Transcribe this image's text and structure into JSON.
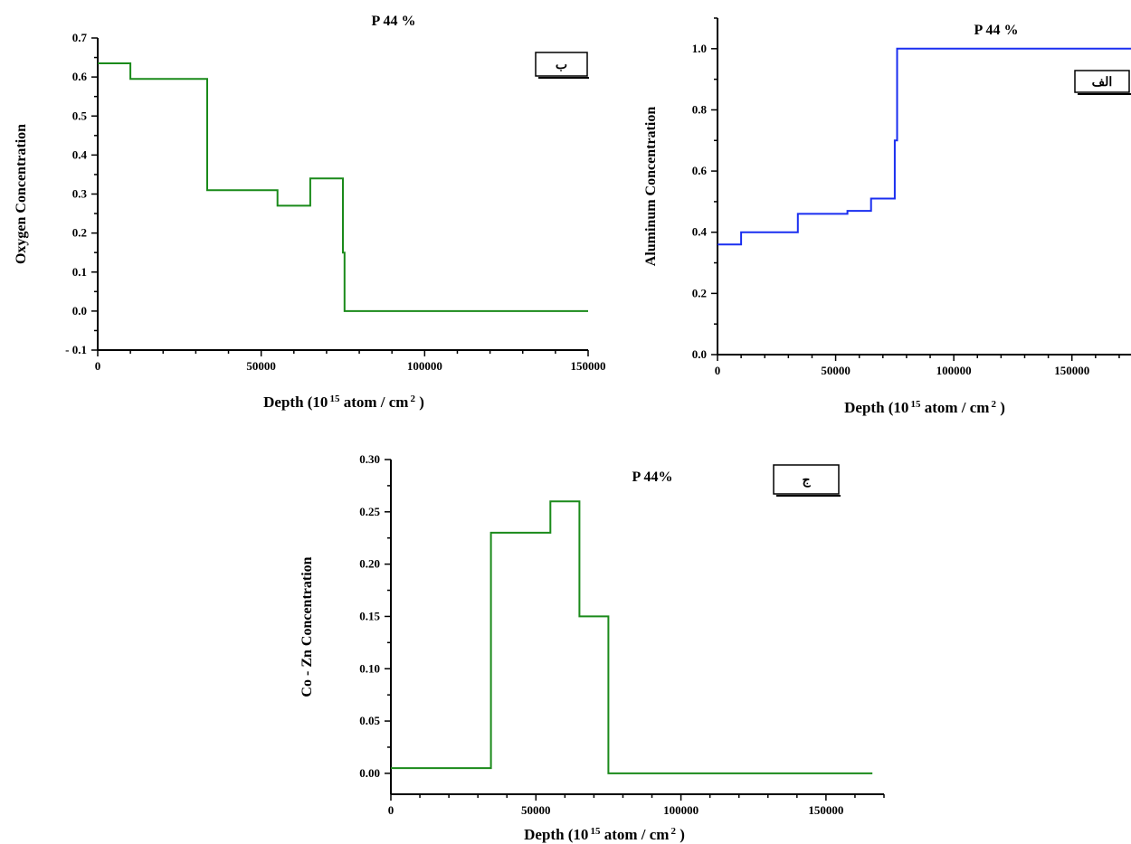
{
  "charts": [
    {
      "id": "oxygen",
      "title": "P 44 %",
      "badge": "ب",
      "ylabel": "Oxygen Concentration",
      "xlabel_main": "Depth (10",
      "xlabel_sup1": "15",
      "xlabel_mid": " atom / cm",
      "xlabel_sup2": "2",
      "xlabel_end": " )",
      "color": "#1a8a1a",
      "xticks": [
        {
          "v": 0,
          "label": "0"
        },
        {
          "v": 50000,
          "label": "50000"
        },
        {
          "v": 100000,
          "label": "100000"
        },
        {
          "v": 150000,
          "label": "150000"
        }
      ],
      "yticks": [
        {
          "v": -0.1,
          "label": "- 0.1"
        },
        {
          "v": 0.0,
          "label": "0.0"
        },
        {
          "v": 0.1,
          "label": "0.1"
        },
        {
          "v": 0.2,
          "label": "0.2"
        },
        {
          "v": 0.3,
          "label": "0.3"
        },
        {
          "v": 0.4,
          "label": "0.4"
        },
        {
          "v": 0.5,
          "label": "0.5"
        },
        {
          "v": 0.6,
          "label": "0.6"
        },
        {
          "v": 0.7,
          "label": "0.7"
        }
      ]
    },
    {
      "id": "aluminum",
      "title": "P 44 %",
      "badge": "الف",
      "ylabel": "Aluminum Concentration",
      "xlabel_main": "Depth (10",
      "xlabel_sup1": "15",
      "xlabel_mid": " atom / cm",
      "xlabel_sup2": "2",
      "xlabel_end": " )",
      "color": "#1a2ef0",
      "xticks": [
        {
          "v": 0,
          "label": "0"
        },
        {
          "v": 50000,
          "label": "50000"
        },
        {
          "v": 100000,
          "label": "100000"
        },
        {
          "v": 150000,
          "label": "150000"
        }
      ],
      "yticks": [
        {
          "v": 0.0,
          "label": "0.0"
        },
        {
          "v": 0.2,
          "label": "0.2"
        },
        {
          "v": 0.4,
          "label": "0.4"
        },
        {
          "v": 0.6,
          "label": "0.6"
        },
        {
          "v": 0.8,
          "label": "0.8"
        },
        {
          "v": 1.0,
          "label": "1.0"
        }
      ]
    },
    {
      "id": "cozn",
      "title": "P 44%",
      "badge": "ج",
      "ylabel": "Co - Zn Concentration",
      "xlabel_main": "Depth (10",
      "xlabel_sup1": "15",
      "xlabel_mid": " atom / cm",
      "xlabel_sup2": "2",
      "xlabel_end": " )",
      "color": "#1a8a1a",
      "xticks": [
        {
          "v": 0,
          "label": "0"
        },
        {
          "v": 50000,
          "label": "50000"
        },
        {
          "v": 100000,
          "label": "100000"
        },
        {
          "v": 150000,
          "label": "150000"
        }
      ],
      "yticks": [
        {
          "v": 0.0,
          "label": "0.00"
        },
        {
          "v": 0.05,
          "label": "0.05"
        },
        {
          "v": 0.1,
          "label": "0.10"
        },
        {
          "v": 0.15,
          "label": "0.15"
        },
        {
          "v": 0.2,
          "label": "0.20"
        },
        {
          "v": 0.25,
          "label": "0.25"
        },
        {
          "v": 0.3,
          "label": "0.30"
        }
      ]
    }
  ],
  "chart_data": [
    {
      "type": "line",
      "title": "P 44 %",
      "xlabel": "Depth (10 15 atom / cm 2 )",
      "ylabel": "Oxygen Concentration",
      "xlim": [
        0,
        150000
      ],
      "ylim": [
        -0.1,
        0.7
      ],
      "step": true,
      "series": [
        {
          "x": [
            0,
            10000,
            10000,
            33500,
            33500,
            55000,
            55000,
            65000,
            65000,
            75000,
            75000,
            75500,
            75500,
            150000
          ],
          "y": [
            0.635,
            0.635,
            0.595,
            0.595,
            0.31,
            0.31,
            0.27,
            0.27,
            0.34,
            0.34,
            0.15,
            0.15,
            0.0,
            0.0
          ]
        }
      ]
    },
    {
      "type": "line",
      "title": "P 44 %",
      "xlabel": "Depth (10 15 atom / cm 2 )",
      "ylabel": "Aluminum Concentration",
      "xlim": [
        0,
        175000
      ],
      "ylim": [
        0.0,
        1.1
      ],
      "step": true,
      "series": [
        {
          "x": [
            0,
            10000,
            10000,
            34000,
            34000,
            55000,
            55000,
            65000,
            65000,
            75000,
            75000,
            76000,
            76000,
            175000
          ],
          "y": [
            0.36,
            0.36,
            0.4,
            0.4,
            0.46,
            0.46,
            0.47,
            0.47,
            0.51,
            0.51,
            0.7,
            0.7,
            1.0,
            1.0
          ]
        }
      ]
    },
    {
      "type": "line",
      "title": "P 44%",
      "xlabel": "Depth (10 15 atom / cm 2 )",
      "ylabel": "Co - Zn Concentration",
      "xlim": [
        0,
        170000
      ],
      "ylim": [
        -0.02,
        0.3
      ],
      "step": true,
      "series": [
        {
          "x": [
            0,
            34500,
            34500,
            55000,
            55000,
            65000,
            65000,
            75000,
            75000,
            166000
          ],
          "y": [
            0.005,
            0.005,
            0.23,
            0.23,
            0.26,
            0.26,
            0.15,
            0.15,
            0.0,
            0.0
          ]
        }
      ]
    }
  ]
}
